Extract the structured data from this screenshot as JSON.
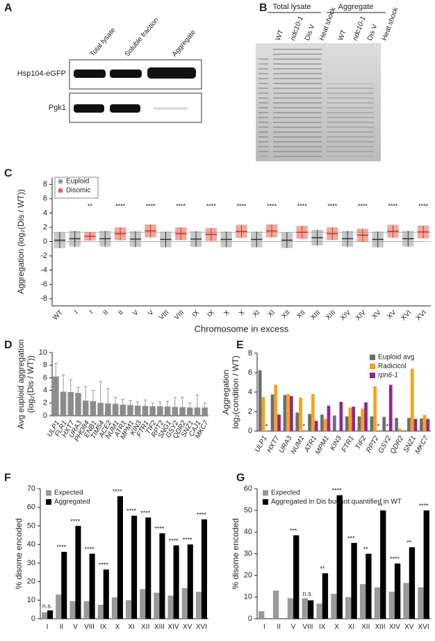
{
  "panels": {
    "A": {
      "label": "A",
      "columns": [
        "Total lysate",
        "Soluble fraction",
        "Aggregate"
      ],
      "rows": [
        "Hsp104-eGFP",
        "Pgk1"
      ]
    },
    "B": {
      "label": "B",
      "groups": [
        "Total lysate",
        "Aggregate"
      ],
      "lanes": [
        "WT",
        "ndc10-1",
        "Dis V",
        "Heat shock",
        "WT",
        "ndc10-1",
        "Dis V",
        "Heat shock"
      ]
    }
  },
  "chart_data": [
    {
      "type": "strip",
      "label": "C",
      "ylabel": [
        "Aggregation (log₂(Dis / WT))"
      ],
      "xlabel": "Chromosome in excess",
      "categories": [
        "WT",
        "I",
        "I",
        "II",
        "II",
        "V",
        "V",
        "VIII",
        "VIII",
        "IX",
        "IX",
        "X",
        "X",
        "XI",
        "XI",
        "XII",
        "XII",
        "XIII",
        "XIII",
        "XIV",
        "XIV",
        "XV",
        "XV",
        "XVI",
        "XVI"
      ],
      "series": [
        {
          "name": "Euploid",
          "color": "#9a9a9a",
          "values": [
            0.2,
            0.4,
            null,
            0.4,
            null,
            0.35,
            null,
            0.3,
            null,
            0.35,
            null,
            0.3,
            null,
            0.3,
            null,
            0.2,
            null,
            0.55,
            null,
            0.4,
            null,
            0.3,
            null,
            0.4,
            null
          ],
          "sd": [
            1.1,
            1.1,
            null,
            1.1,
            null,
            1.1,
            null,
            1.1,
            null,
            1.1,
            null,
            1.1,
            null,
            1.1,
            null,
            1.1,
            null,
            1.1,
            null,
            1.1,
            null,
            1.1,
            null,
            1.1,
            null
          ]
        },
        {
          "name": "Disomic",
          "color": "#e8604c",
          "values": [
            null,
            null,
            0.75,
            null,
            1.1,
            null,
            1.5,
            null,
            1.1,
            null,
            1.0,
            null,
            1.45,
            null,
            1.5,
            null,
            1.3,
            null,
            1.1,
            null,
            0.9,
            null,
            1.45,
            null,
            1.35
          ],
          "sd": [
            null,
            null,
            0.6,
            null,
            0.9,
            null,
            0.9,
            null,
            0.9,
            null,
            0.9,
            null,
            0.9,
            null,
            0.9,
            null,
            0.9,
            null,
            0.9,
            null,
            0.9,
            null,
            0.9,
            null,
            0.9
          ]
        }
      ],
      "significance": [
        null,
        null,
        "**",
        null,
        "****",
        null,
        "****",
        null,
        "****",
        null,
        "****",
        null,
        "****",
        null,
        "****",
        null,
        "****",
        null,
        "****",
        null,
        "****",
        null,
        "****",
        null,
        "****"
      ],
      "reference_lines": [
        0,
        1.3
      ],
      "ylim": [
        -9,
        9
      ],
      "yticks": [
        -8,
        -6,
        -4,
        -2,
        0,
        2,
        4,
        6,
        8
      ],
      "legend": "upper left",
      "category_style": "normal"
    },
    {
      "type": "bar",
      "label": "D",
      "ylabel": [
        "Avg euploid aggregation",
        "(log₂(Dis / WT))"
      ],
      "categories": [
        "ULP1",
        "FLR1",
        "HXT7",
        "URA3",
        "PHO84",
        "ENB1",
        "TIM54",
        "ACE2",
        "NUM1",
        "ATR1",
        "MPM1",
        "KIN3",
        "FTR1",
        "TIF2",
        "RPT2",
        "SNG1",
        "GSY2",
        "QDR2",
        "SNZ1",
        "CAJ1",
        "MKC7"
      ],
      "series": [
        {
          "color": "#8c8c8c",
          "values": [
            6.2,
            3.8,
            3.75,
            3.6,
            2.4,
            2.3,
            2.05,
            1.95,
            1.9,
            1.75,
            1.7,
            1.6,
            1.55,
            1.5,
            1.5,
            1.45,
            1.4,
            1.35,
            1.3,
            1.3,
            1.3
          ],
          "errors": [
            2.1,
            2.7,
            1.95,
            0.9,
            2.2,
            1.7,
            3.35,
            2.35,
            1.0,
            0.85,
            0.7,
            0.6,
            0.95,
            0.5,
            0.7,
            0.85,
            1.5,
            1.55,
            0.7,
            2.0,
            0.7
          ]
        }
      ],
      "ylim": [
        0,
        10
      ],
      "yticks": [
        0,
        2,
        4,
        6,
        8,
        10
      ],
      "category_style": "italic"
    },
    {
      "type": "bar",
      "label": "E",
      "ylabel": [
        "Aggregation",
        "log₂(condition / WT)"
      ],
      "categories": [
        "ULP1",
        "HXT7",
        "URA3",
        "NUM1",
        "ATR1",
        "MPM1",
        "KIN3",
        "FTR1",
        "TIF2",
        "RPT2",
        "GSY2",
        "QDR2",
        "SNZ1",
        "MKC7"
      ],
      "series": [
        {
          "name": "Euploid avg",
          "color": "#6d6e71",
          "values": [
            6.25,
            3.75,
            3.7,
            1.9,
            1.75,
            1.7,
            1.6,
            1.5,
            1.5,
            1.5,
            1.45,
            1.35,
            1.35,
            1.3
          ]
        },
        {
          "name": "Radicicol",
          "color": "#f7a21b",
          "values": [
            3.5,
            4.75,
            3.8,
            3.45,
            3.8,
            1.25,
            null,
            2.4,
            2.3,
            4.6,
            null,
            0.25,
            6.4,
            1.65
          ],
          "value_labels": [
            null,
            null,
            null,
            null,
            null,
            null,
            null,
            null,
            null,
            null,
            "*",
            null,
            null,
            null
          ]
        },
        {
          "name": "rpn6-1",
          "color": "#92278f",
          "values": [
            null,
            1.7,
            3.6,
            null,
            1.05,
            2.6,
            3.0,
            2.5,
            2.95,
            null,
            4.75,
            null,
            1.25,
            1.25
          ],
          "value_labels": [
            "*",
            null,
            null,
            "*",
            null,
            null,
            null,
            null,
            null,
            "*",
            null,
            null,
            null,
            null
          ]
        }
      ],
      "ylim": [
        0,
        8
      ],
      "yticks": [
        0,
        2,
        4,
        6,
        8
      ],
      "legend": "upper right",
      "category_style": "italic"
    },
    {
      "type": "bar",
      "label": "F",
      "ylabel": [
        "% disome encoded"
      ],
      "categories": [
        "I",
        "II",
        "V",
        "VIII",
        "IX",
        "X",
        "XI",
        "XII",
        "XIII",
        "XIV",
        "XV",
        "XVI"
      ],
      "series": [
        {
          "name": "Expected",
          "color": "#999999",
          "values": [
            3.5,
            13,
            9.5,
            9.5,
            7.5,
            11.5,
            10,
            16,
            14,
            12.5,
            16.5,
            14.5
          ]
        },
        {
          "name": "Aggregated",
          "color": "#000000",
          "values": [
            4.5,
            36,
            50,
            35,
            26.5,
            66,
            55.5,
            54.5,
            46,
            39.5,
            40,
            53.5
          ]
        }
      ],
      "significance": [
        "n.s.",
        "****",
        "****",
        "****",
        "****",
        "****",
        "****",
        "****",
        "****",
        "****",
        "****",
        "****"
      ],
      "ylim": [
        0,
        70
      ],
      "yticks": [
        0,
        10,
        20,
        30,
        40,
        50,
        60,
        70
      ],
      "legend": "upper left",
      "category_style": "normal"
    },
    {
      "type": "bar",
      "label": "G",
      "ylabel": [
        "% disome encoded"
      ],
      "categories": [
        "I",
        "II",
        "V",
        "VIII",
        "IX",
        "X",
        "XI",
        "XII",
        "XIII",
        "XIV",
        "XV",
        "XVI"
      ],
      "series": [
        {
          "name": "Expected",
          "color": "#999999",
          "values": [
            3.5,
            13,
            9.5,
            9.5,
            7,
            11.5,
            10,
            16,
            14.5,
            12.5,
            16.5,
            14.5
          ]
        },
        {
          "name": "Aggregated in Dis but not quantified in WT",
          "color": "#000000",
          "values": [
            null,
            null,
            38.5,
            8.5,
            21,
            57,
            35,
            30,
            50,
            25.5,
            33,
            50
          ]
        }
      ],
      "significance": [
        null,
        null,
        "***",
        "n.s.",
        "**",
        "****",
        "***",
        "**",
        "**",
        "****",
        "**",
        "****"
      ],
      "ylim": [
        0,
        60
      ],
      "yticks": [
        0,
        10,
        20,
        30,
        40,
        50,
        60
      ],
      "legend": "upper left",
      "category_style": "normal"
    }
  ]
}
